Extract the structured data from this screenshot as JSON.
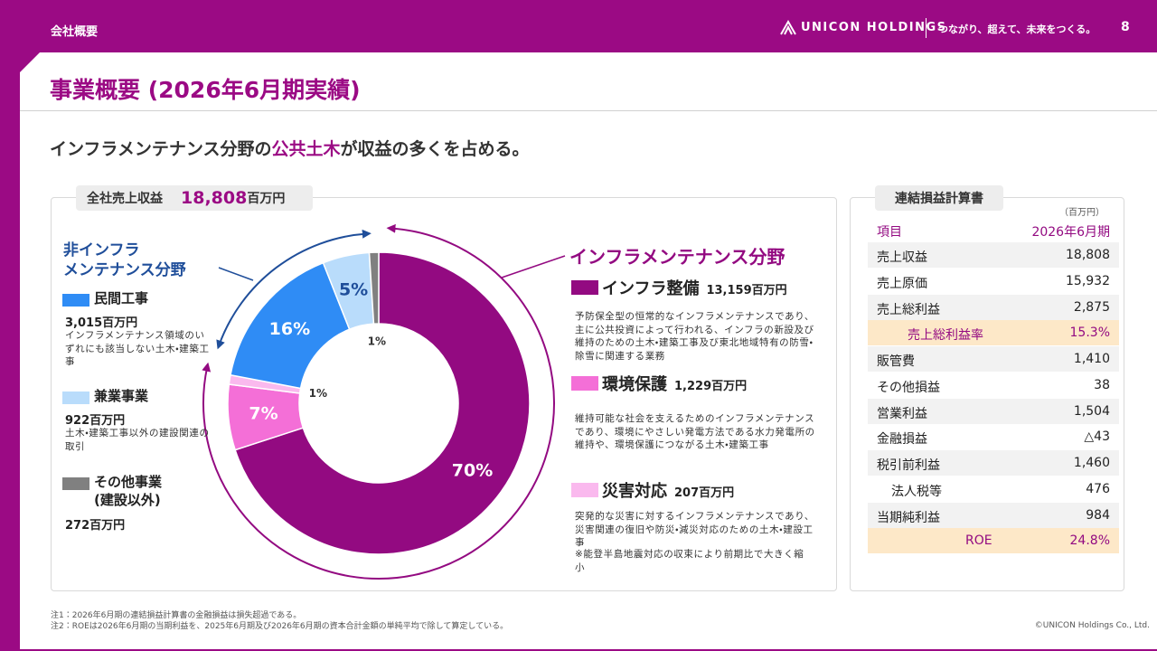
{
  "header": {
    "section": "会社概要",
    "logo": "UNICON HOLDINGS",
    "tagline": "つながり、超えて、未来をつくる。",
    "page": "8"
  },
  "title": "事業概要 (2026年6月期実績)",
  "headline": {
    "before": "インフラメンテナンス分野の",
    "highlight": "公共土木",
    "after": "が収益の多くを占める。"
  },
  "total": {
    "label": "全社売上収益",
    "value": "18,808",
    "unit": "百万円"
  },
  "infra_label": "インフラメンテナンス分野",
  "non_infra_label": [
    "非インフラ",
    "メンテナンス分野"
  ],
  "chart_data": {
    "type": "pie",
    "donut": true,
    "categories": [
      "インフラ整備",
      "環境保護",
      "災害対応",
      "民間工事",
      "兼業事業",
      "その他事業 (建設以外)"
    ],
    "values": [
      70,
      7,
      1,
      16,
      5,
      1
    ],
    "value_labels": [
      "70%",
      "7%",
      "1%",
      "16%",
      "5%",
      "1%"
    ],
    "colors": [
      "#930a81",
      "#f46fd7",
      "#fab9ee",
      "#2f8cf5",
      "#b9dcfb",
      "#808080"
    ]
  },
  "segment_details": [
    {
      "amount": "13,159百万円",
      "description": "予防保全型の恒常的なインフラメンテナンスであり、主に公共投資によって行われる、インフラの新設及び維持のための土木・建築工事及び東北地域特有の防雪・除雪に関連する業務"
    },
    {
      "amount": "1,229百万円",
      "description": "維持可能な社会を支えるためのインフラメンテナンスであり、環境にやさしい発電方法である水力発電所の維持や、環境保護につながる土木・建築工事"
    },
    {
      "amount": "207百万円",
      "description": "突発的な災害に対するインフラメンテナンスであり、災害関連の復旧や防災・減災対応のための土木・建設工事",
      "note": "※能登半島地震対応の収束により前期比で大きく縮小"
    },
    {
      "amount": "3,015百万円",
      "description": "インフラメンテナンス領域のいずれにも該当しない土木・建築工事"
    },
    {
      "amount": "922百万円",
      "description": "土木・建築工事以外の建設関連の取引"
    },
    {
      "amount": "272百万円"
    }
  ],
  "income_statement": {
    "title": "連結損益計算書",
    "unit": "（百万円）",
    "header": [
      "項目",
      "2026年6月期"
    ],
    "rows": [
      [
        "売上収益",
        "18,808"
      ],
      [
        "売上原価",
        "15,932"
      ],
      [
        "売上総利益",
        "2,875"
      ],
      [
        "売上総利益率",
        "15.3%"
      ],
      [
        "販管費",
        "1,410"
      ],
      [
        "その他損益",
        "38"
      ],
      [
        "営業利益",
        "1,504"
      ],
      [
        "金融損益",
        "△43"
      ],
      [
        "税引前利益",
        "1,460"
      ],
      [
        "法人税等",
        "476"
      ],
      [
        "当期純利益",
        "984"
      ],
      [
        "ROE",
        "24.8%"
      ]
    ]
  },
  "footnotes": [
    "注1：2026年6月期の連結損益計算書の金融損益は損失超過である。",
    "注2：ROEは2026年6月期の当期利益を、2025年6月期及び2026年6月期の資本合計金額の単純平均で除して算定している。"
  ],
  "copyright": "©UNICON Holdings Co., Ltd."
}
